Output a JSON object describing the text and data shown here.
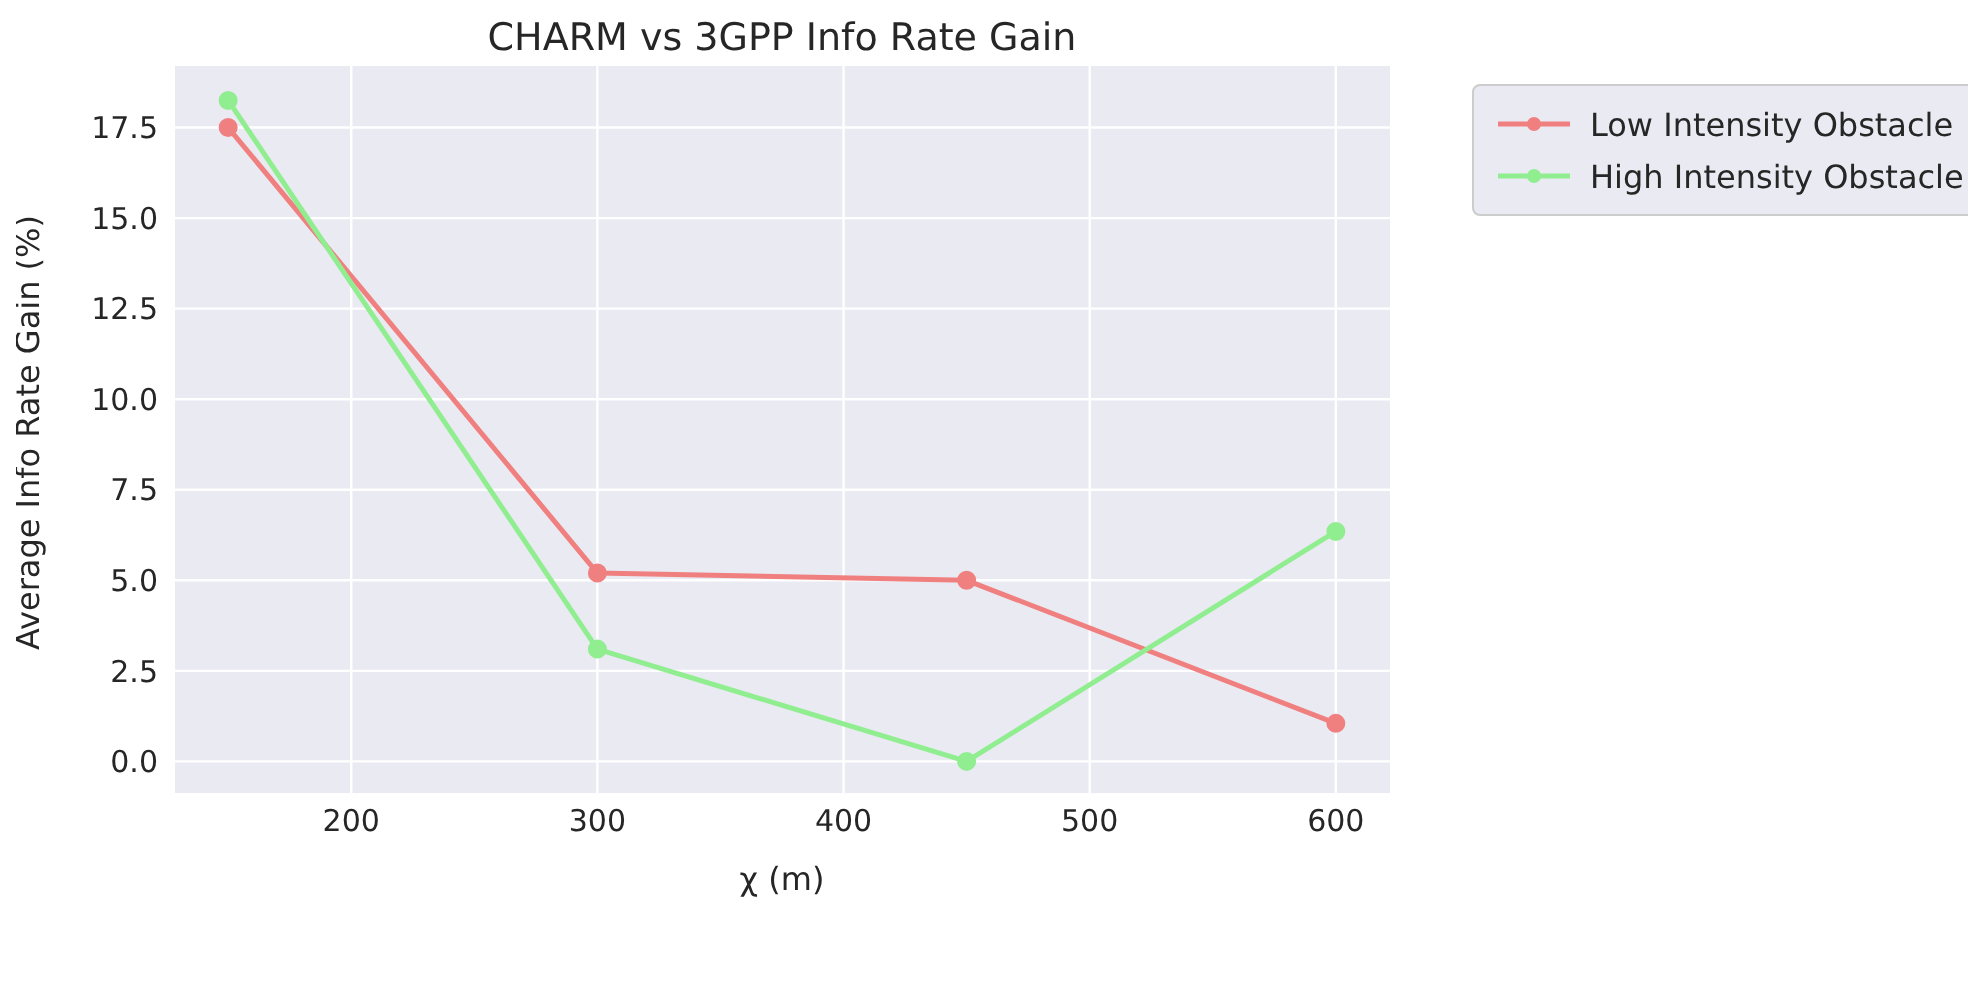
{
  "chart_data": {
    "type": "line",
    "title": "CHARM vs 3GPP Info Rate Gain",
    "xlabel": "χ (m)",
    "ylabel": "Average Info Rate Gain (%)",
    "x": [
      150,
      300,
      450,
      600
    ],
    "series": [
      {
        "name": "Low Intensity Obstacle",
        "color": "#f08080",
        "values": [
          17.5,
          5.2,
          5.0,
          1.05
        ]
      },
      {
        "name": "High Intensity Obstacle",
        "color": "#90ee90",
        "values": [
          18.25,
          3.1,
          0.0,
          6.35
        ]
      }
    ],
    "xlim": [
      128,
      622
    ],
    "xticks": [
      200,
      300,
      400,
      500,
      600
    ],
    "ylim": [
      -0.9,
      19.2
    ],
    "yticks": [
      {
        "value": 0,
        "label": "0.0"
      },
      2.5,
      {
        "value": 5,
        "label": "5.0"
      },
      7.5,
      {
        "value": 10,
        "label": "10.0"
      },
      12.5,
      {
        "value": 15,
        "label": "15.0"
      },
      17.5
    ],
    "grid": true,
    "legend": "top right",
    "marker": "circle",
    "line_style": "solid"
  }
}
